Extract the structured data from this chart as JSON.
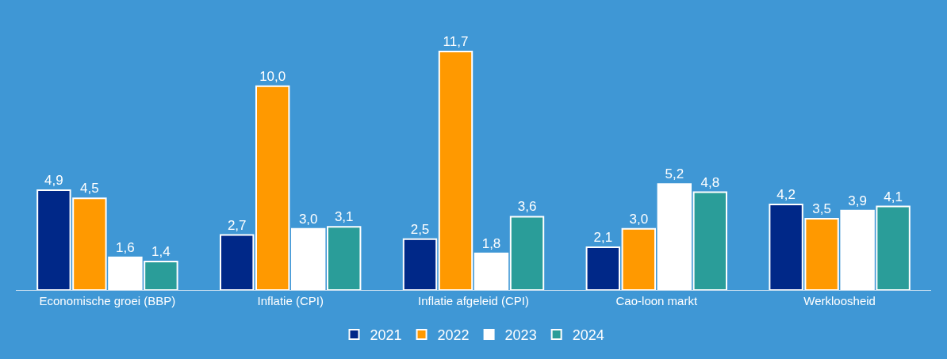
{
  "chart_data": {
    "type": "bar",
    "categories": [
      "Economische groei (BBP)",
      "Inflatie (CPI)",
      "Inflatie afgeleid (CPI)",
      "Cao-loon markt",
      "Werkloosheid"
    ],
    "series": [
      {
        "name": "2021",
        "color": "#002888",
        "values": [
          4.9,
          2.7,
          2.5,
          2.1,
          4.2
        ],
        "value_labels": [
          "4,9",
          "2,7",
          "2,5",
          "2,1",
          "4,2"
        ]
      },
      {
        "name": "2022",
        "color": "#ff9900",
        "values": [
          4.5,
          10.0,
          11.7,
          3.0,
          3.5
        ],
        "value_labels": [
          "4,5",
          "10,0",
          "11,7",
          "3,0",
          "3,5"
        ]
      },
      {
        "name": "2023",
        "color": "#ffffff",
        "values": [
          1.6,
          3.0,
          1.8,
          5.2,
          3.9
        ],
        "value_labels": [
          "1,6",
          "3,0",
          "1,8",
          "5,2",
          "3,9"
        ]
      },
      {
        "name": "2024",
        "color": "#2a9d99",
        "values": [
          1.4,
          3.1,
          3.6,
          4.8,
          4.1
        ],
        "value_labels": [
          "1,4",
          "3,1",
          "3,6",
          "4,8",
          "4,1"
        ]
      }
    ],
    "legend": "bottom",
    "grid": false
  }
}
